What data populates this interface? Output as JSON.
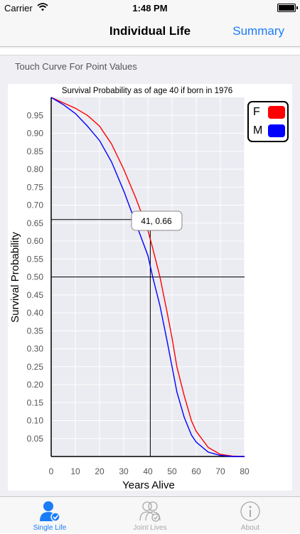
{
  "status_bar": {
    "carrier": "Carrier",
    "time": "1:48 PM"
  },
  "nav": {
    "title": "Individual Life",
    "right_button": "Summary"
  },
  "hint": "Touch Curve For Point Values",
  "colors": {
    "accent": "#1a7cf7",
    "female": "#ff0000",
    "male": "#0000ff"
  },
  "chart_data": {
    "type": "line",
    "title": "Survival Probability as of age 40 if born in 1976",
    "xlabel": "Years Alive",
    "ylabel": "Survival Probability",
    "xlim": [
      0,
      80
    ],
    "ylim": [
      0,
      1.0
    ],
    "x_ticks": [
      "0",
      "10",
      "20",
      "30",
      "40",
      "50",
      "60",
      "70",
      "80"
    ],
    "y_ticks": [
      "0.95",
      "0.90",
      "0.85",
      "0.80",
      "0.75",
      "0.70",
      "0.65",
      "0.60",
      "0.55",
      "0.50",
      "0.45",
      "0.40",
      "0.35",
      "0.30",
      "0.25",
      "0.20",
      "0.15",
      "0.10",
      "0.05"
    ],
    "x": [
      0,
      5,
      10,
      15,
      20,
      25,
      30,
      35,
      40,
      42,
      45,
      48,
      50,
      52,
      55,
      58,
      60,
      65,
      70,
      75,
      80
    ],
    "series": [
      {
        "name": "F",
        "color": "#ff0000",
        "values": [
          1.0,
          0.985,
          0.97,
          0.95,
          0.92,
          0.87,
          0.8,
          0.72,
          0.63,
          0.58,
          0.5,
          0.4,
          0.33,
          0.25,
          0.17,
          0.1,
          0.07,
          0.025,
          0.006,
          0.001,
          0.0
        ]
      },
      {
        "name": "M",
        "color": "#0000ff",
        "values": [
          1.0,
          0.98,
          0.955,
          0.92,
          0.88,
          0.82,
          0.74,
          0.65,
          0.56,
          0.5,
          0.42,
          0.32,
          0.25,
          0.18,
          0.11,
          0.06,
          0.04,
          0.012,
          0.003,
          0.0,
          0.0
        ]
      }
    ],
    "crosshair": {
      "x": 41,
      "y": 0.66,
      "label": "41, 0.66"
    },
    "reference_line_y": 0.5,
    "legend": [
      "F",
      "M"
    ],
    "legend_position": "top-right"
  },
  "tabs": [
    {
      "label": "Single Life",
      "active": true
    },
    {
      "label": "Joint Lives",
      "active": false
    },
    {
      "label": "About",
      "active": false
    }
  ]
}
